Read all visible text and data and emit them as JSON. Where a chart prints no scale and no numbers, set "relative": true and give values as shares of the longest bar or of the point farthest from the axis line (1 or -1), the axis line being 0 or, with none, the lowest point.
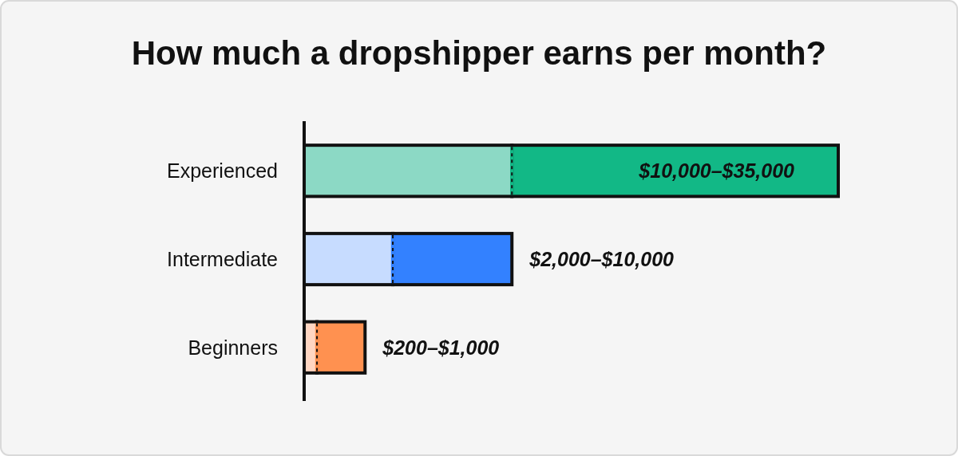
{
  "chart_data": {
    "type": "bar",
    "orientation": "horizontal",
    "stacked": true,
    "relative": true,
    "title": "How much a dropshipper earns per month?",
    "categories": [
      "Experienced",
      "Intermediate",
      "Beginners"
    ],
    "series": [
      {
        "colors": [
          "#8cd9c5",
          "#c7dcff",
          "#ffd6c2"
        ],
        "values": [
          0.389,
          0.166,
          0.024
        ]
      },
      {
        "colors": [
          "#12b886",
          "#3381ff",
          "#ff9150"
        ],
        "values": [
          0.611,
          0.223,
          0.09
        ]
      }
    ],
    "annotations": [
      "$10,000–$35,000",
      "$2,000–$10,000",
      "$200–$1,000"
    ]
  }
}
